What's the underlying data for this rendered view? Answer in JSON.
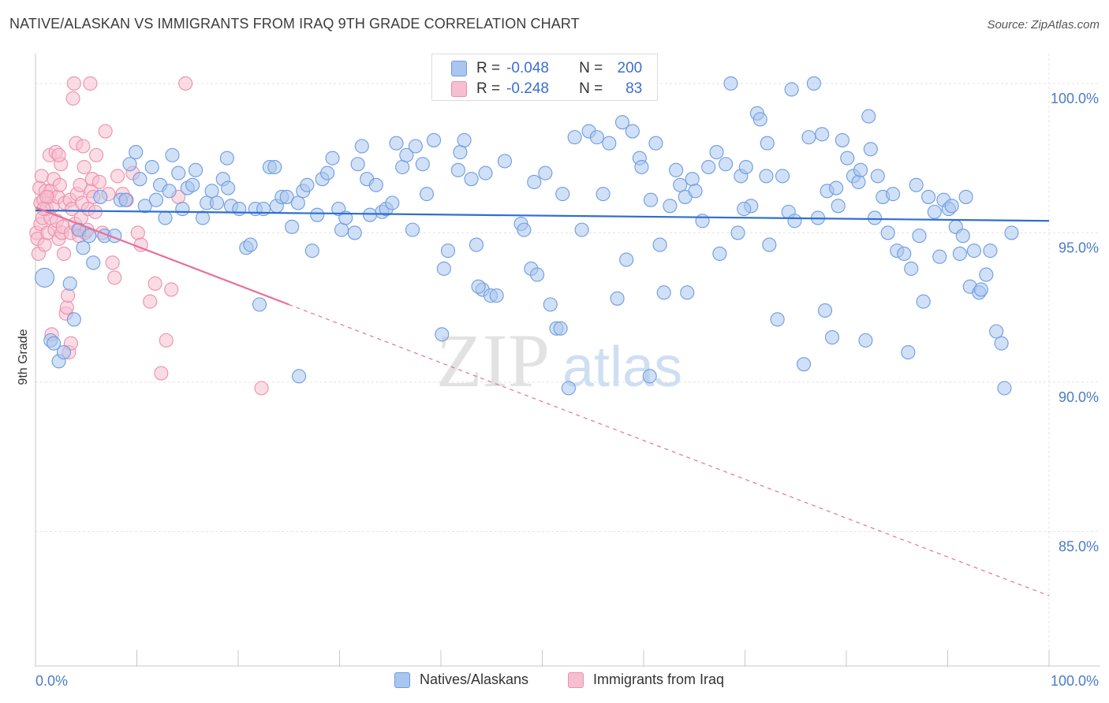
{
  "title": "NATIVE/ALASKAN VS IMMIGRANTS FROM IRAQ 9TH GRADE CORRELATION CHART",
  "source": "Source: ZipAtlas.com",
  "watermark": {
    "zip": "ZIP",
    "atlas": "atlas"
  },
  "colors": {
    "blue_fill": "#a9c6ef",
    "blue_stroke": "#6e9ce0",
    "blue_line": "#2e6fd0",
    "pink_fill": "#f6bfd0",
    "pink_stroke": "#ec8fae",
    "pink_line": "#e8709a",
    "grid": "#e3e3e3",
    "tick_text": "#4a7cc9"
  },
  "legend_top": [
    {
      "r_label": "R =",
      "r_value": "-0.048",
      "n_label": "N =",
      "n_value": "200"
    },
    {
      "r_label": "R =",
      "r_value": "-0.248",
      "n_label": "N =",
      "n_value": "83"
    }
  ],
  "legend_bottom": [
    "Natives/Alaskans",
    "Immigrants from Iraq"
  ],
  "chart_data": {
    "type": "scatter",
    "title": "NATIVE/ALASKAN VS IMMIGRANTS FROM IRAQ 9TH GRADE CORRELATION CHART",
    "xlabel": "",
    "ylabel": "9th Grade",
    "xlim": [
      0,
      100
    ],
    "ylim": [
      80.5,
      101.0
    ],
    "x_tick_labels": [
      "0.0%",
      "100.0%"
    ],
    "y_ticks": [
      85,
      90,
      95,
      100
    ],
    "y_tick_labels": [
      "85.0%",
      "90.0%",
      "95.0%",
      "100.0%"
    ],
    "grid": true,
    "legend": "top-center",
    "series": [
      {
        "name": "Natives/Alaskans",
        "R": -0.048,
        "N": 200,
        "trend": {
          "x0": 0,
          "y0": 95.75,
          "x1": 100,
          "y1": 95.4
        },
        "points": [
          [
            0.9,
            93.5
          ],
          [
            1.5,
            91.4
          ],
          [
            1.8,
            91.3
          ],
          [
            2.3,
            90.7
          ],
          [
            2.8,
            91.0
          ],
          [
            3.4,
            93.3
          ],
          [
            3.8,
            92.1
          ],
          [
            4.3,
            95.1
          ],
          [
            4.7,
            94.5
          ],
          [
            5.3,
            94.9
          ],
          [
            5.7,
            94.0
          ],
          [
            6.4,
            96.2
          ],
          [
            6.8,
            94.9
          ],
          [
            7.8,
            94.9
          ],
          [
            8.4,
            96.1
          ],
          [
            8.9,
            96.1
          ],
          [
            9.3,
            97.3
          ],
          [
            9.9,
            97.7
          ],
          [
            10.3,
            96.8
          ],
          [
            10.8,
            95.9
          ],
          [
            11.5,
            97.2
          ],
          [
            12.3,
            96.6
          ],
          [
            12.8,
            95.5
          ],
          [
            13.2,
            96.4
          ],
          [
            13.5,
            97.6
          ],
          [
            14.1,
            97.0
          ],
          [
            14.5,
            95.8
          ],
          [
            15.0,
            96.5
          ],
          [
            15.5,
            96.6
          ],
          [
            15.8,
            97.1
          ],
          [
            16.5,
            95.5
          ],
          [
            16.9,
            96.0
          ],
          [
            17.4,
            96.4
          ],
          [
            17.9,
            96.0
          ],
          [
            18.5,
            96.8
          ],
          [
            18.9,
            97.5
          ],
          [
            19.3,
            95.9
          ],
          [
            20.1,
            95.8
          ],
          [
            20.8,
            94.5
          ],
          [
            21.2,
            94.6
          ],
          [
            21.7,
            95.8
          ],
          [
            22.1,
            92.6
          ],
          [
            22.5,
            95.8
          ],
          [
            23.1,
            97.2
          ],
          [
            23.6,
            97.2
          ],
          [
            23.8,
            95.9
          ],
          [
            24.3,
            96.2
          ],
          [
            24.8,
            96.2
          ],
          [
            25.3,
            95.2
          ],
          [
            25.9,
            96.0
          ],
          [
            26.4,
            96.4
          ],
          [
            26.8,
            96.6
          ],
          [
            27.3,
            94.4
          ],
          [
            27.8,
            95.6
          ],
          [
            28.3,
            96.8
          ],
          [
            28.8,
            97.0
          ],
          [
            29.3,
            97.5
          ],
          [
            29.9,
            95.8
          ],
          [
            30.2,
            95.1
          ],
          [
            30.6,
            95.5
          ],
          [
            31.5,
            95.0
          ],
          [
            31.8,
            97.3
          ],
          [
            32.2,
            97.9
          ],
          [
            32.7,
            96.8
          ],
          [
            33.0,
            95.6
          ],
          [
            33.6,
            96.6
          ],
          [
            34.2,
            95.7
          ],
          [
            34.6,
            95.8
          ],
          [
            35.2,
            96.0
          ],
          [
            35.6,
            98.0
          ],
          [
            36.2,
            97.2
          ],
          [
            36.6,
            97.6
          ],
          [
            37.2,
            95.1
          ],
          [
            37.5,
            97.9
          ],
          [
            38.2,
            97.3
          ],
          [
            38.6,
            96.3
          ],
          [
            39.3,
            98.1
          ],
          [
            40.1,
            91.6
          ],
          [
            40.3,
            93.8
          ],
          [
            40.7,
            94.4
          ],
          [
            41.7,
            97.1
          ],
          [
            41.9,
            97.7
          ],
          [
            42.3,
            98.1
          ],
          [
            43.0,
            96.8
          ],
          [
            43.5,
            94.6
          ],
          [
            44.1,
            93.1
          ],
          [
            44.4,
            97.0
          ],
          [
            44.9,
            92.9
          ],
          [
            45.5,
            92.9
          ],
          [
            46.3,
            97.4
          ],
          [
            47.9,
            95.3
          ],
          [
            48.2,
            95.1
          ],
          [
            48.9,
            93.8
          ],
          [
            49.2,
            96.7
          ],
          [
            49.5,
            93.6
          ],
          [
            50.3,
            97.0
          ],
          [
            50.8,
            92.6
          ],
          [
            51.4,
            91.8
          ],
          [
            51.8,
            91.8
          ],
          [
            52.0,
            96.3
          ],
          [
            52.6,
            89.8
          ],
          [
            53.2,
            98.2
          ],
          [
            53.9,
            95.1
          ],
          [
            54.6,
            98.4
          ],
          [
            55.4,
            98.2
          ],
          [
            56.0,
            96.3
          ],
          [
            56.6,
            98.0
          ],
          [
            57.4,
            92.8
          ],
          [
            57.9,
            98.7
          ],
          [
            58.3,
            94.1
          ],
          [
            58.9,
            98.4
          ],
          [
            59.6,
            97.5
          ],
          [
            59.8,
            97.2
          ],
          [
            60.7,
            96.1
          ],
          [
            61.2,
            98.0
          ],
          [
            61.6,
            94.6
          ],
          [
            62.0,
            93.0
          ],
          [
            62.6,
            95.9
          ],
          [
            63.2,
            97.1
          ],
          [
            63.6,
            96.6
          ],
          [
            64.1,
            96.2
          ],
          [
            64.3,
            93.0
          ],
          [
            64.8,
            96.8
          ],
          [
            65.1,
            96.4
          ],
          [
            65.8,
            95.4
          ],
          [
            66.4,
            97.2
          ],
          [
            67.2,
            97.7
          ],
          [
            67.5,
            94.3
          ],
          [
            68.1,
            97.3
          ],
          [
            68.6,
            100.0
          ],
          [
            69.3,
            95.0
          ],
          [
            69.6,
            96.9
          ],
          [
            70.1,
            97.2
          ],
          [
            70.6,
            95.9
          ],
          [
            71.2,
            99.0
          ],
          [
            71.5,
            98.8
          ],
          [
            72.1,
            96.9
          ],
          [
            72.4,
            94.6
          ],
          [
            73.2,
            92.1
          ],
          [
            73.7,
            96.9
          ],
          [
            74.3,
            95.7
          ],
          [
            74.6,
            99.8
          ],
          [
            74.9,
            95.4
          ],
          [
            75.8,
            90.6
          ],
          [
            76.3,
            98.2
          ],
          [
            76.8,
            100.0
          ],
          [
            77.2,
            95.5
          ],
          [
            77.6,
            98.3
          ],
          [
            77.9,
            92.4
          ],
          [
            78.1,
            96.4
          ],
          [
            78.6,
            91.5
          ],
          [
            79.0,
            96.5
          ],
          [
            79.2,
            95.9
          ],
          [
            79.6,
            98.1
          ],
          [
            80.1,
            97.5
          ],
          [
            80.7,
            96.9
          ],
          [
            81.2,
            96.7
          ],
          [
            81.9,
            91.4
          ],
          [
            82.2,
            98.9
          ],
          [
            82.4,
            97.8
          ],
          [
            82.8,
            95.5
          ],
          [
            83.1,
            96.9
          ],
          [
            83.6,
            96.2
          ],
          [
            84.1,
            95.0
          ],
          [
            84.6,
            96.3
          ],
          [
            85.0,
            94.4
          ],
          [
            85.7,
            94.3
          ],
          [
            86.1,
            91.0
          ],
          [
            86.4,
            93.8
          ],
          [
            86.9,
            96.6
          ],
          [
            87.2,
            94.9
          ],
          [
            87.6,
            92.7
          ],
          [
            88.1,
            96.2
          ],
          [
            88.7,
            95.7
          ],
          [
            89.2,
            94.2
          ],
          [
            89.6,
            96.1
          ],
          [
            90.1,
            95.8
          ],
          [
            90.4,
            95.9
          ],
          [
            90.8,
            95.2
          ],
          [
            91.2,
            94.3
          ],
          [
            91.5,
            94.9
          ],
          [
            91.8,
            96.2
          ],
          [
            92.2,
            93.2
          ],
          [
            92.6,
            94.4
          ],
          [
            93.1,
            93.0
          ],
          [
            93.3,
            93.1
          ],
          [
            93.8,
            93.6
          ],
          [
            94.2,
            94.4
          ],
          [
            94.8,
            91.7
          ],
          [
            95.3,
            91.3
          ],
          [
            95.6,
            89.8
          ],
          [
            96.3,
            95.0
          ],
          [
            60.6,
            90.2
          ],
          [
            19.0,
            96.5
          ],
          [
            26.0,
            90.2
          ],
          [
            11.9,
            96.1
          ],
          [
            72.2,
            98.0
          ],
          [
            43.7,
            93.2
          ],
          [
            81.4,
            97.1
          ],
          [
            69.9,
            95.8
          ]
        ]
      },
      {
        "name": "Immigrants from Iraq",
        "R": -0.248,
        "N": 83,
        "trend_solid": {
          "x0": 0,
          "y0": 95.85,
          "x1": 25,
          "y1": 92.6
        },
        "trend_dashed": {
          "x0": 25,
          "y0": 92.6,
          "x1": 100,
          "y1": 82.85
        },
        "points": [
          [
            0.1,
            95.0
          ],
          [
            0.2,
            94.8
          ],
          [
            0.3,
            94.3
          ],
          [
            0.4,
            96.5
          ],
          [
            0.5,
            96.0
          ],
          [
            0.5,
            95.3
          ],
          [
            0.6,
            96.9
          ],
          [
            0.7,
            95.5
          ],
          [
            0.8,
            96.1
          ],
          [
            0.9,
            94.6
          ],
          [
            1.0,
            96.4
          ],
          [
            1.1,
            95.8
          ],
          [
            1.2,
            95.0
          ],
          [
            1.3,
            96.2
          ],
          [
            1.4,
            97.6
          ],
          [
            1.5,
            96.4
          ],
          [
            1.5,
            95.5
          ],
          [
            1.6,
            91.6
          ],
          [
            1.7,
            95.9
          ],
          [
            1.8,
            96.8
          ],
          [
            1.9,
            95.1
          ],
          [
            2.0,
            97.7
          ],
          [
            2.1,
            95.4
          ],
          [
            2.2,
            96.2
          ],
          [
            2.3,
            94.8
          ],
          [
            2.4,
            96.6
          ],
          [
            2.5,
            97.3
          ],
          [
            2.6,
            95.0
          ],
          [
            2.7,
            95.2
          ],
          [
            2.8,
            94.3
          ],
          [
            2.9,
            96.0
          ],
          [
            3.0,
            92.3
          ],
          [
            3.1,
            92.5
          ],
          [
            3.2,
            92.9
          ],
          [
            3.3,
            91.0
          ],
          [
            3.4,
            96.1
          ],
          [
            3.5,
            95.0
          ],
          [
            3.6,
            95.8
          ],
          [
            3.7,
            99.5
          ],
          [
            3.8,
            100.0
          ],
          [
            3.9,
            95.3
          ],
          [
            4.0,
            98.0
          ],
          [
            4.1,
            96.3
          ],
          [
            4.2,
            95.1
          ],
          [
            4.3,
            94.9
          ],
          [
            4.4,
            96.6
          ],
          [
            4.5,
            95.5
          ],
          [
            4.6,
            96.0
          ],
          [
            4.7,
            97.9
          ],
          [
            4.8,
            97.2
          ],
          [
            4.9,
            95.0
          ],
          [
            5.1,
            95.1
          ],
          [
            5.2,
            95.8
          ],
          [
            5.4,
            100.0
          ],
          [
            5.5,
            96.4
          ],
          [
            5.6,
            96.8
          ],
          [
            5.7,
            96.2
          ],
          [
            5.9,
            95.7
          ],
          [
            6.0,
            97.6
          ],
          [
            6.3,
            96.7
          ],
          [
            6.6,
            95.0
          ],
          [
            6.9,
            98.4
          ],
          [
            7.2,
            96.3
          ],
          [
            7.6,
            94.0
          ],
          [
            7.8,
            93.5
          ],
          [
            8.1,
            96.9
          ],
          [
            8.6,
            96.3
          ],
          [
            9.0,
            96.1
          ],
          [
            9.6,
            97.0
          ],
          [
            10.1,
            95.0
          ],
          [
            10.4,
            94.6
          ],
          [
            11.3,
            92.7
          ],
          [
            11.8,
            93.3
          ],
          [
            12.4,
            90.3
          ],
          [
            12.9,
            91.4
          ],
          [
            13.4,
            93.1
          ],
          [
            14.1,
            96.2
          ],
          [
            14.8,
            100.0
          ],
          [
            22.3,
            89.8
          ],
          [
            1.1,
            96.2
          ],
          [
            2.3,
            97.6
          ],
          [
            0.8,
            95.8
          ],
          [
            3.5,
            91.3
          ]
        ]
      }
    ]
  }
}
